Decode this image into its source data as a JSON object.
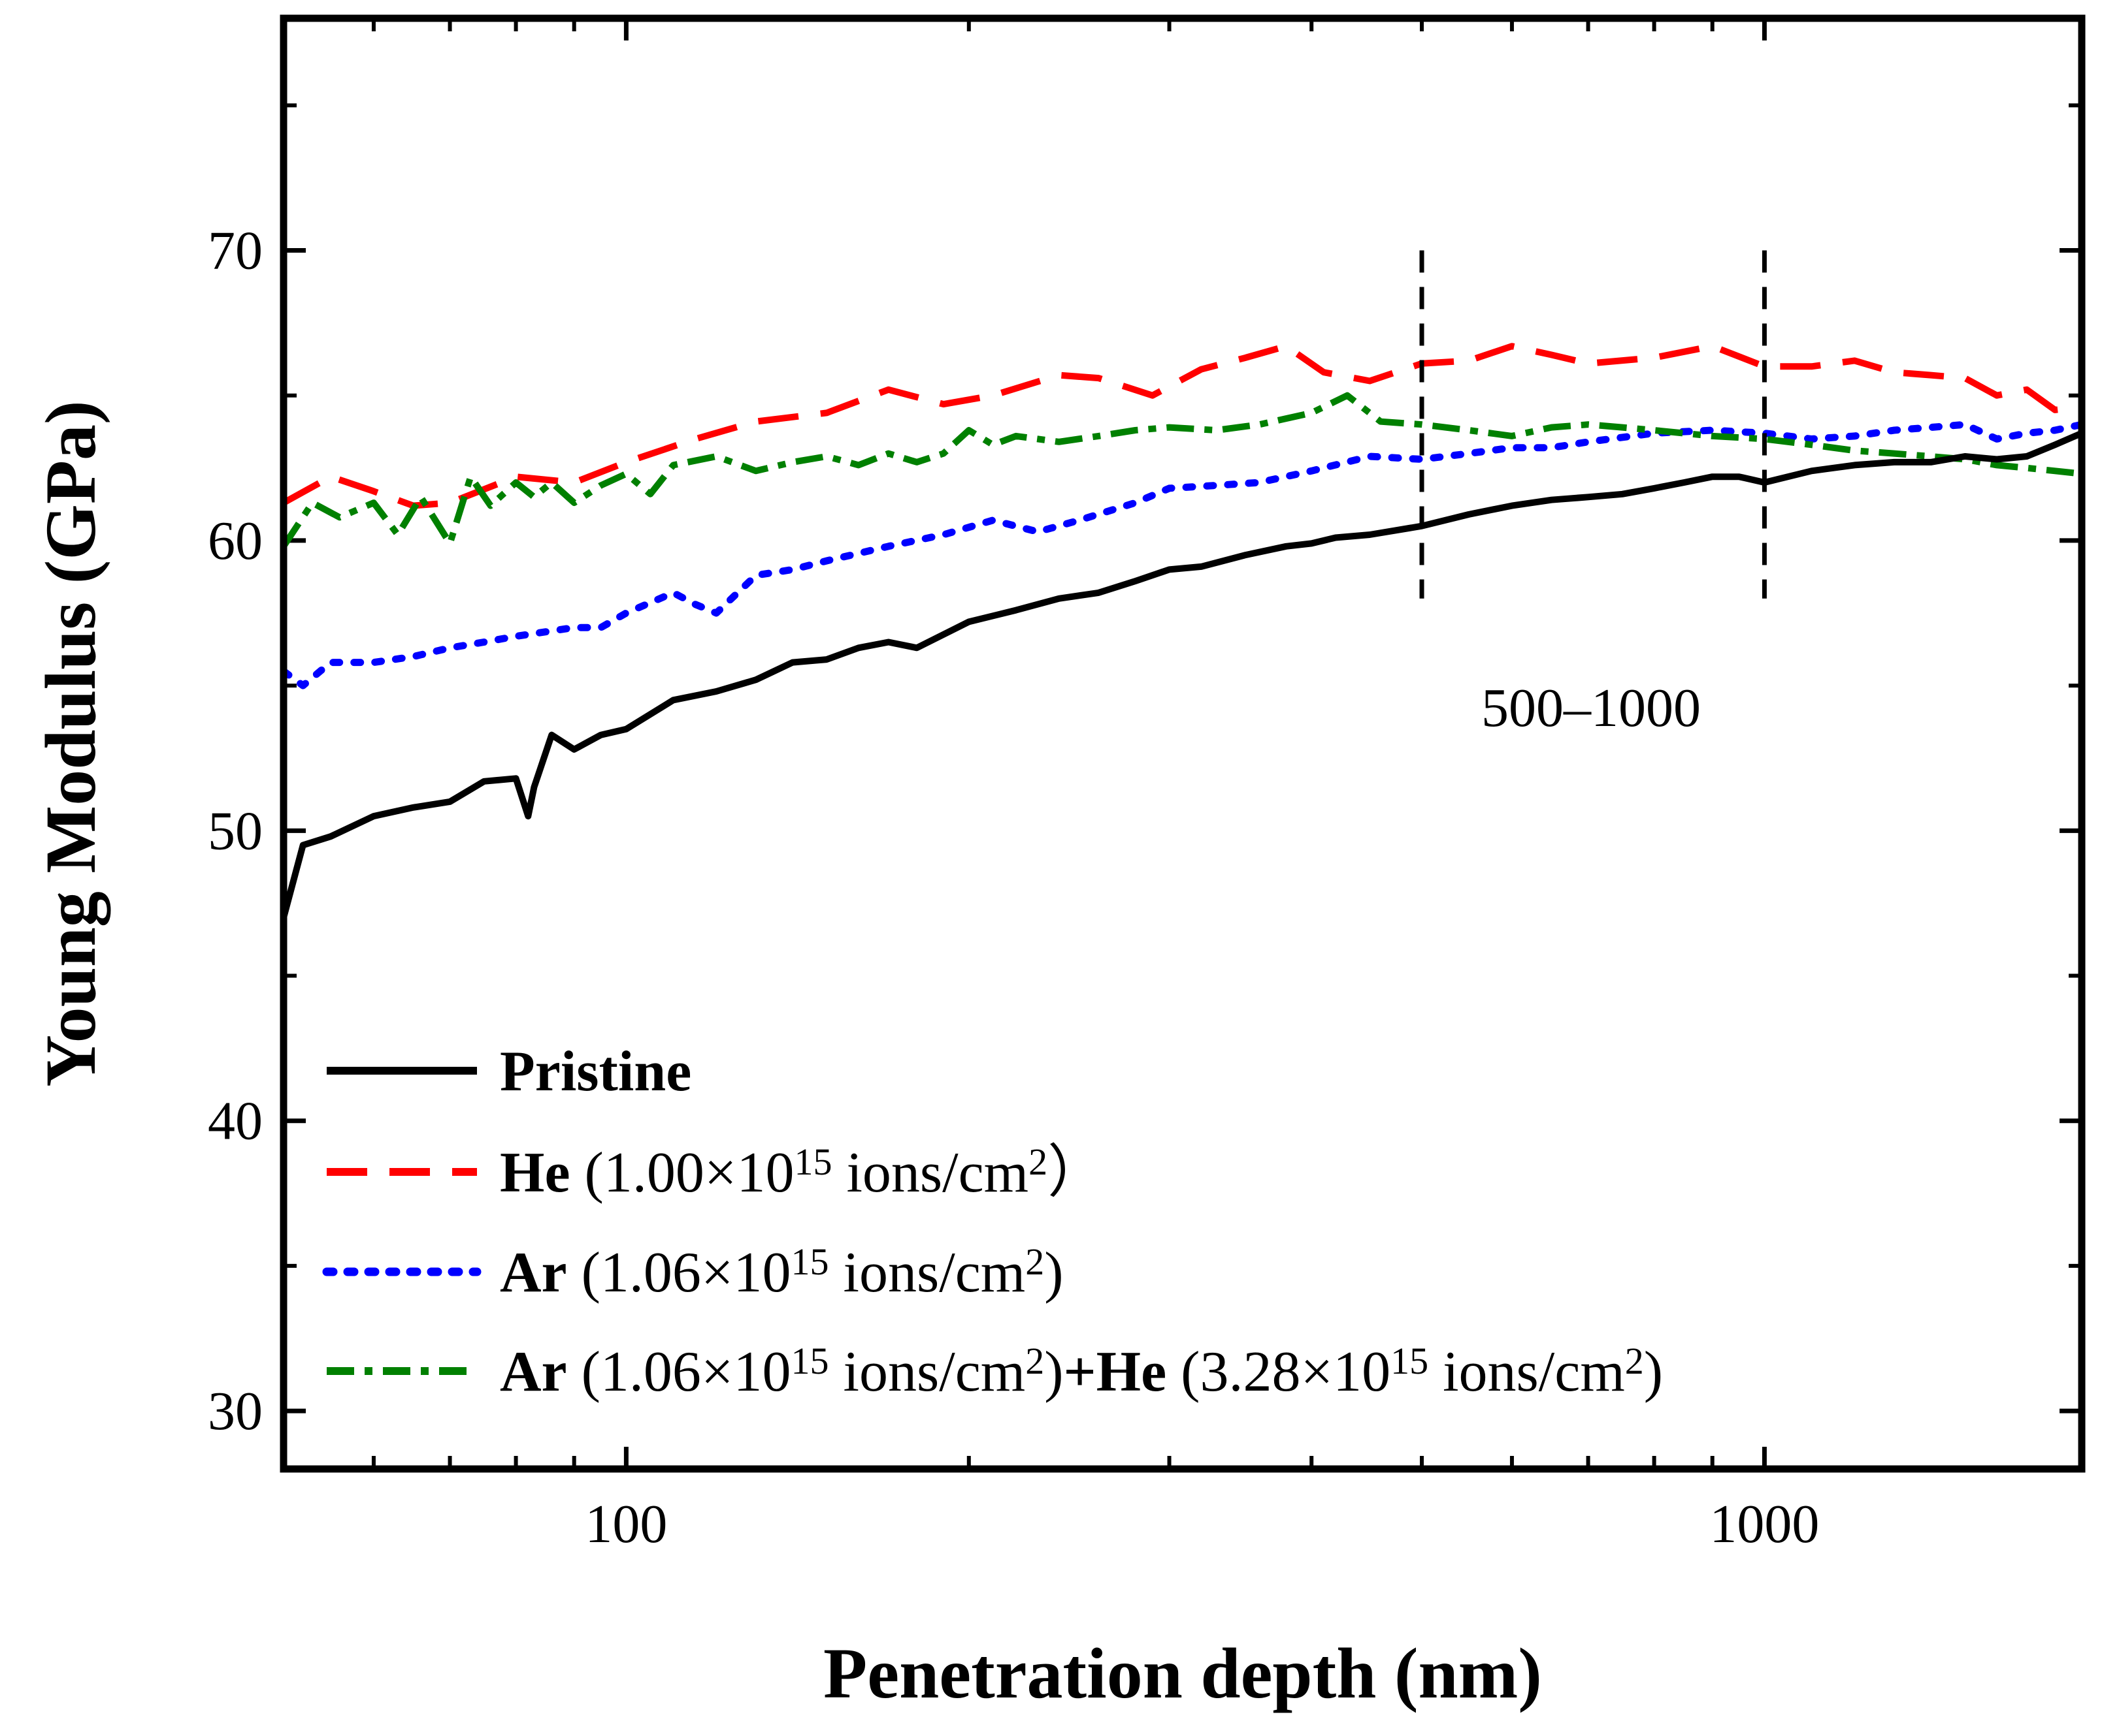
{
  "chart_data": {
    "type": "line",
    "xscale": "log",
    "title": "",
    "xlabel": "Penetration depth (nm)",
    "ylabel": "Young Modulus (GPa)",
    "xlim": [
      50,
      1900
    ],
    "ylim": [
      28,
      78
    ],
    "x_ticks": [
      {
        "value": 100,
        "label": "100"
      },
      {
        "value": 1000,
        "label": "1000"
      }
    ],
    "y_ticks": [
      {
        "value": 30,
        "label": "30"
      },
      {
        "value": 40,
        "label": "40"
      },
      {
        "value": 50,
        "label": "50"
      },
      {
        "value": 60,
        "label": "60"
      },
      {
        "value": 70,
        "label": "70"
      }
    ],
    "annotation": {
      "text": "500–1000",
      "x_range": [
        500,
        1000
      ]
    },
    "legend_position": "bottom-left",
    "series": [
      {
        "name": "Pristine",
        "label_bold": "Pristine",
        "label_rest": "",
        "color": "#000000",
        "dash": "solid",
        "x": [
          50,
          52,
          55,
          60,
          65,
          70,
          75,
          80,
          82,
          83,
          86,
          90,
          95,
          100,
          110,
          120,
          130,
          140,
          150,
          160,
          170,
          180,
          200,
          220,
          240,
          260,
          280,
          300,
          320,
          350,
          380,
          400,
          420,
          450,
          500,
          550,
          600,
          650,
          700,
          750,
          800,
          850,
          900,
          950,
          1000,
          1100,
          1200,
          1300,
          1400,
          1500,
          1600,
          1700,
          1800,
          1900
        ],
        "y": [
          47.0,
          49.5,
          49.8,
          50.5,
          50.8,
          51.0,
          51.7,
          51.8,
          50.5,
          51.5,
          53.3,
          52.8,
          53.3,
          53.5,
          54.5,
          54.8,
          55.2,
          55.8,
          55.9,
          56.3,
          56.5,
          56.3,
          57.2,
          57.6,
          58.0,
          58.2,
          58.6,
          59.0,
          59.1,
          59.5,
          59.8,
          59.9,
          60.1,
          60.2,
          60.5,
          60.9,
          61.2,
          61.4,
          61.5,
          61.6,
          61.8,
          62.0,
          62.2,
          62.2,
          62.0,
          62.4,
          62.6,
          62.7,
          62.7,
          62.9,
          62.8,
          62.9,
          63.3,
          63.7
        ]
      },
      {
        "name": "He (1.00×10^15 ions/cm^2)",
        "label_bold": "He",
        "label_rest": " (1.00×10^15 ions/cm^2）",
        "color": "#ff0000",
        "dash": "dashed",
        "x": [
          50,
          55,
          60,
          65,
          70,
          80,
          90,
          100,
          115,
          130,
          150,
          170,
          190,
          210,
          240,
          260,
          290,
          320,
          350,
          380,
          410,
          450,
          500,
          550,
          600,
          650,
          700,
          800,
          900,
          1000,
          1100,
          1200,
          1300,
          1400,
          1500,
          1600,
          1700,
          1800,
          1900
        ],
        "y": [
          61.3,
          62.2,
          61.7,
          61.2,
          61.3,
          62.2,
          62.0,
          62.7,
          63.5,
          64.1,
          64.4,
          65.2,
          64.7,
          65.0,
          65.7,
          65.6,
          65.0,
          65.9,
          66.3,
          66.7,
          65.8,
          65.5,
          66.1,
          66.2,
          66.7,
          66.4,
          66.1,
          66.3,
          66.7,
          66.0,
          66.0,
          66.2,
          65.8,
          65.7,
          65.6,
          65.0,
          65.2,
          64.5,
          64.6
        ]
      },
      {
        "name": "Ar (1.06×10^15 ions/cm^2)",
        "label_bold": "Ar",
        "label_rest": " (1.06×10^15 ions/cm^2)",
        "color": "#0000ff",
        "dash": "dotted",
        "x": [
          50,
          52,
          55,
          60,
          65,
          70,
          75,
          80,
          90,
          95,
          100,
          110,
          115,
          120,
          130,
          140,
          150,
          170,
          190,
          210,
          230,
          250,
          280,
          300,
          330,
          360,
          400,
          450,
          500,
          550,
          600,
          650,
          700,
          800,
          900,
          1000,
          1100,
          1200,
          1300,
          1400,
          1500,
          1600,
          1700,
          1800,
          1900
        ],
        "y": [
          55.5,
          55.0,
          55.8,
          55.8,
          56.0,
          56.3,
          56.5,
          56.7,
          57.0,
          57.0,
          57.5,
          58.2,
          57.8,
          57.5,
          58.8,
          59.0,
          59.3,
          59.8,
          60.2,
          60.7,
          60.3,
          60.7,
          61.3,
          61.8,
          61.9,
          62.0,
          62.4,
          62.9,
          62.8,
          63.0,
          63.2,
          63.2,
          63.4,
          63.7,
          63.8,
          63.7,
          63.5,
          63.6,
          63.8,
          63.9,
          64.0,
          63.5,
          63.7,
          63.8,
          64.0
        ]
      },
      {
        "name": "Ar (1.06×10^15 ions/cm^2)+He (3.28×10^15 ions/cm^2)",
        "label_bold": "Ar",
        "label_rest": " (1.06×10^15 ions/cm^2)",
        "label_bold_2": "+He",
        "label_rest_2": " (3.28×10^15 ions/cm^2)",
        "color": "#008000",
        "dash": "dashdot",
        "x": [
          50,
          53,
          56,
          60,
          63,
          66,
          70,
          73,
          76,
          80,
          83,
          86,
          90,
          95,
          100,
          105,
          110,
          120,
          130,
          140,
          150,
          160,
          170,
          180,
          190,
          200,
          210,
          220,
          240,
          260,
          280,
          300,
          330,
          360,
          400,
          430,
          460,
          500,
          550,
          600,
          650,
          700,
          750,
          800,
          900,
          1000,
          1100,
          1200,
          1300,
          1400,
          1500,
          1600,
          1700,
          1800,
          1900
        ],
        "y": [
          59.8,
          61.3,
          60.8,
          61.3,
          60.2,
          61.5,
          59.9,
          62.2,
          61.2,
          62.0,
          61.5,
          62.0,
          61.3,
          61.9,
          62.3,
          61.6,
          62.6,
          62.9,
          62.4,
          62.7,
          62.9,
          62.6,
          63.0,
          62.7,
          63.0,
          63.8,
          63.3,
          63.6,
          63.4,
          63.6,
          63.8,
          63.9,
          63.8,
          64.0,
          64.4,
          65.0,
          64.1,
          64.0,
          63.8,
          63.6,
          63.9,
          64.0,
          63.9,
          63.8,
          63.6,
          63.5,
          63.3,
          63.1,
          63.0,
          62.9,
          62.8,
          62.6,
          62.5,
          62.4,
          62.3
        ]
      }
    ]
  }
}
